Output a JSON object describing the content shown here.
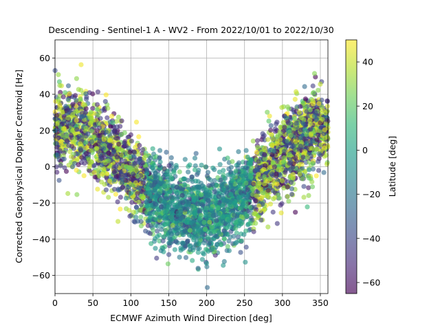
{
  "chart_data": {
    "type": "scatter",
    "title": "Descending - Sentinel-1 A - WV2 - From 2022/10/01 to 2022/10/30",
    "xlabel": "ECMWF Azimuth Wind Direction [deg]",
    "ylabel": "Corrected Geophysical Doppler Centroid [Hz]",
    "xlim": [
      0,
      360
    ],
    "ylim": [
      -70,
      70
    ],
    "xticks": [
      0,
      50,
      100,
      150,
      200,
      250,
      300,
      350
    ],
    "yticks": [
      -60,
      -40,
      -20,
      0,
      20,
      40,
      60
    ],
    "grid": true,
    "colorbar": {
      "label": "Latitude [deg]",
      "range": [
        -65,
        50
      ],
      "ticks": [
        -60,
        -40,
        -20,
        0,
        20,
        40
      ],
      "colormap": "viridis",
      "alpha": 0.6
    },
    "points_model": {
      "description_of_trend": "V-shaped relation: about +25 Hz near 0/360 deg, about -25 Hz near 180-200 deg",
      "count": 4200
    },
    "marker_alpha": 0.6
  }
}
